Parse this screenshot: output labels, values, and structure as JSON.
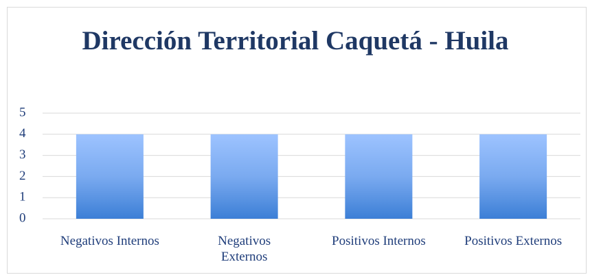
{
  "chart_data": {
    "type": "bar",
    "title": "Dirección Territorial Caquetá - Huila",
    "categories": [
      "Negativos Internos",
      "Negativos Externos",
      "Positivos Internos",
      "Positivos Externos"
    ],
    "values": [
      4,
      4,
      4,
      4
    ],
    "color": "#5b9bd5",
    "ylim": [
      0,
      5
    ],
    "yticks": [
      0,
      1,
      2,
      3,
      4,
      5
    ],
    "grid": true
  }
}
